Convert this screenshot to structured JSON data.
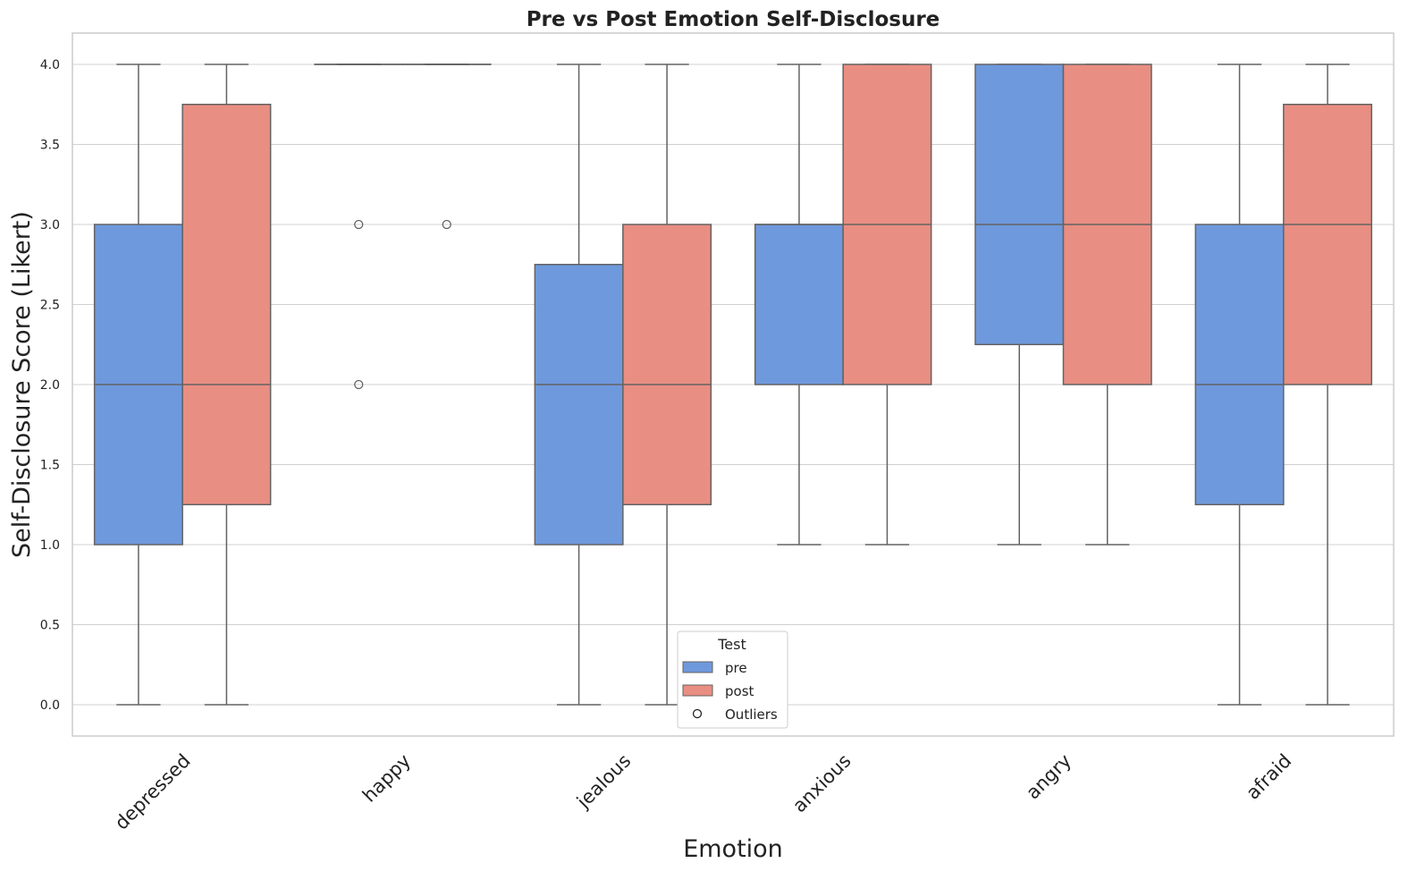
{
  "chart_data": {
    "type": "box",
    "title": "Pre vs Post Emotion Self-Disclosure",
    "xlabel": "Emotion",
    "ylabel": "Self-Disclosure Score (Likert)",
    "ylim": [
      -0.2,
      4.2
    ],
    "yticks": [
      0.0,
      0.5,
      1.0,
      1.5,
      2.0,
      2.5,
      3.0,
      3.5,
      4.0
    ],
    "ytick_labels": [
      "0.0",
      "0.5",
      "1.0",
      "1.5",
      "2.0",
      "2.5",
      "3.0",
      "3.5",
      "4.0"
    ],
    "grid": true,
    "categories": [
      "depressed",
      "happy",
      "jealous",
      "anxious",
      "angry",
      "afraid"
    ],
    "series": [
      {
        "name": "pre",
        "color": "#6f99dd",
        "boxes": [
          {
            "whislo": 0,
            "q1": 1,
            "med": 2,
            "q3": 3,
            "whishi": 4,
            "fliers": []
          },
          {
            "whislo": 4,
            "q1": 4,
            "med": 4,
            "q3": 4,
            "whishi": 4,
            "fliers": [
              3,
              2
            ]
          },
          {
            "whislo": 0,
            "q1": 1,
            "med": 2,
            "q3": 2.75,
            "whishi": 4,
            "fliers": []
          },
          {
            "whislo": 1,
            "q1": 2,
            "med": 3,
            "q3": 3,
            "whishi": 4,
            "fliers": []
          },
          {
            "whislo": 1,
            "q1": 2.25,
            "med": 3,
            "q3": 4,
            "whishi": 4,
            "fliers": []
          },
          {
            "whislo": 0,
            "q1": 1.25,
            "med": 2,
            "q3": 3,
            "whishi": 4,
            "fliers": []
          }
        ]
      },
      {
        "name": "post",
        "color": "#e98e82",
        "boxes": [
          {
            "whislo": 0,
            "q1": 1.25,
            "med": 2,
            "q3": 3.75,
            "whishi": 4,
            "fliers": []
          },
          {
            "whislo": 4,
            "q1": 4,
            "med": 4,
            "q3": 4,
            "whishi": 4,
            "fliers": [
              3
            ]
          },
          {
            "whislo": 0,
            "q1": 1.25,
            "med": 2,
            "q3": 3,
            "whishi": 4,
            "fliers": []
          },
          {
            "whislo": 1,
            "q1": 2,
            "med": 3,
            "q3": 4,
            "whishi": 4,
            "fliers": []
          },
          {
            "whislo": 1,
            "q1": 2,
            "med": 3,
            "q3": 4,
            "whishi": 4,
            "fliers": []
          },
          {
            "whislo": 0,
            "q1": 2,
            "med": 3,
            "q3": 3.75,
            "whishi": 4,
            "fliers": []
          }
        ]
      }
    ],
    "legend": {
      "title": "Test",
      "placement": "bottom-center",
      "entries": [
        "pre",
        "post",
        "Outliers"
      ]
    },
    "colors": {
      "line": "#636363",
      "grid": "#d0d0d0",
      "frame": "#cccccc"
    }
  }
}
